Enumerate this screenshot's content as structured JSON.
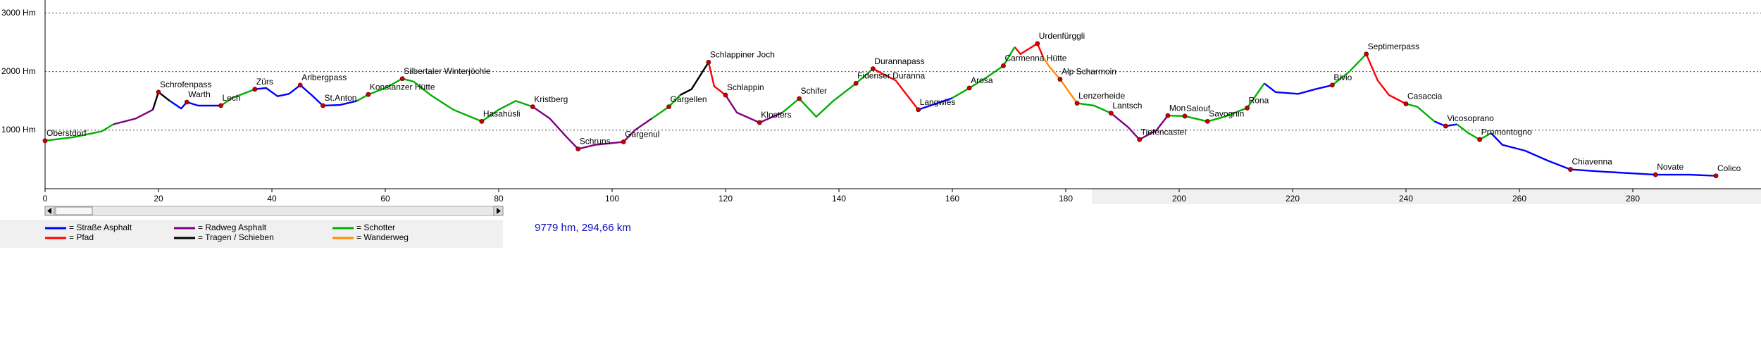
{
  "chart_data": {
    "type": "line",
    "xlim": [
      0,
      300
    ],
    "xticks": [
      0,
      20,
      40,
      60,
      80,
      100,
      120,
      140,
      160,
      180,
      200,
      220,
      240,
      260,
      280
    ],
    "ylim": [
      0,
      3200
    ],
    "yticks": [
      {
        "value": 1000,
        "label": "1000 Hm"
      },
      {
        "value": 2000,
        "label": "2000 Hm"
      },
      {
        "value": 3000,
        "label": "3000 Hm"
      }
    ],
    "grid": true,
    "summary": "9779 hm, 294,66 km",
    "x": [
      0,
      5,
      10,
      12,
      16,
      19,
      20,
      22,
      24,
      25,
      27,
      31,
      33,
      37,
      39,
      41,
      43,
      45,
      47,
      49,
      52,
      55,
      57,
      60,
      63,
      65,
      68,
      72,
      77,
      80,
      83,
      86,
      89,
      92,
      94,
      97,
      102,
      104,
      107,
      110,
      112,
      114,
      117,
      118,
      120,
      122,
      126,
      130,
      133,
      136,
      139,
      143,
      146,
      148,
      150,
      154,
      157,
      160,
      163,
      166,
      169,
      171,
      172,
      175,
      176,
      177,
      179,
      182,
      185,
      188,
      191,
      193,
      196,
      198,
      201,
      205,
      208,
      212,
      215,
      217,
      221,
      224,
      227,
      230,
      233,
      235,
      237,
      240,
      242,
      245,
      247,
      249,
      251,
      253,
      255,
      257,
      261,
      265,
      269,
      275,
      284,
      290,
      294.66
    ],
    "series": [
      {
        "name": "= Straße Asphalt",
        "color": "#0000ff",
        "values": [
          null,
          null,
          null,
          null,
          null,
          null,
          null,
          1500,
          1370,
          1480,
          1420,
          1420,
          null,
          1700,
          1720,
          1580,
          1620,
          1770,
          1600,
          1420,
          1430,
          1500,
          null,
          null,
          null,
          null,
          null,
          null,
          null,
          null,
          null,
          null,
          null,
          null,
          null,
          null,
          null,
          null,
          null,
          null,
          null,
          null,
          null,
          null,
          null,
          null,
          null,
          null,
          null,
          null,
          null,
          null,
          null,
          null,
          null,
          1350,
          1450,
          1550,
          null,
          null,
          null,
          null,
          null,
          null,
          null,
          null,
          null,
          null,
          null,
          null,
          null,
          null,
          null,
          null,
          null,
          null,
          null,
          null,
          1800,
          1650,
          1620,
          1700,
          1770,
          null,
          null,
          null,
          null,
          null,
          null,
          1150,
          1070,
          1100,
          null,
          null,
          950,
          750,
          650,
          480,
          330,
          290,
          240,
          240,
          220
        ]
      },
      {
        "name": "= Pfad",
        "color": "#ff0000",
        "values": [
          null,
          null,
          null,
          null,
          null,
          null,
          null,
          null,
          null,
          null,
          null,
          null,
          null,
          null,
          null,
          null,
          null,
          null,
          null,
          null,
          null,
          null,
          null,
          null,
          null,
          null,
          null,
          null,
          null,
          null,
          null,
          null,
          null,
          null,
          null,
          null,
          null,
          null,
          null,
          null,
          null,
          null,
          2160,
          1750,
          1600,
          null,
          null,
          null,
          null,
          null,
          null,
          null,
          2050,
          1950,
          1850,
          1350,
          null,
          null,
          null,
          null,
          null,
          2420,
          2300,
          2480,
          2250,
          null,
          null,
          null,
          null,
          null,
          null,
          null,
          null,
          null,
          null,
          null,
          null,
          null,
          null,
          null,
          null,
          null,
          null,
          null,
          2300,
          1850,
          1600,
          1450,
          null,
          null,
          null,
          null,
          null,
          null,
          null,
          null,
          null,
          null,
          null,
          null,
          null,
          null,
          null
        ]
      },
      {
        "name": "= Radweg Asphalt",
        "color": "#800080",
        "values": [
          null,
          null,
          null,
          1100,
          1200,
          1350,
          null,
          null,
          null,
          null,
          null,
          null,
          null,
          null,
          null,
          null,
          null,
          null,
          null,
          null,
          null,
          null,
          null,
          null,
          null,
          null,
          null,
          null,
          null,
          null,
          null,
          1400,
          1200,
          880,
          680,
          750,
          800,
          1000,
          1200,
          null,
          null,
          null,
          null,
          null,
          1600,
          1300,
          1130,
          1300,
          null,
          null,
          null,
          null,
          null,
          null,
          null,
          null,
          null,
          null,
          null,
          null,
          null,
          null,
          null,
          null,
          null,
          null,
          null,
          null,
          null,
          1290,
          1050,
          840,
          1000,
          1250,
          null,
          null,
          null,
          null,
          null,
          null,
          null,
          null,
          null,
          null,
          null,
          null,
          null,
          null,
          null,
          null,
          null,
          null,
          null,
          null,
          null,
          null,
          null,
          null,
          null,
          null,
          null,
          null,
          null
        ]
      },
      {
        "name": "= Tragen / Schieben",
        "color": "#000000",
        "values": [
          null,
          null,
          null,
          null,
          null,
          1350,
          1650,
          1500,
          null,
          null,
          null,
          null,
          null,
          null,
          null,
          null,
          null,
          null,
          null,
          null,
          null,
          null,
          null,
          null,
          null,
          null,
          null,
          null,
          null,
          null,
          null,
          null,
          null,
          null,
          null,
          null,
          null,
          null,
          null,
          null,
          1600,
          1700,
          2160,
          null,
          null,
          null,
          null,
          null,
          null,
          null,
          null,
          null,
          null,
          null,
          null,
          null,
          null,
          null,
          null,
          null,
          null,
          null,
          null,
          null,
          null,
          null,
          null,
          null,
          null,
          null,
          null,
          null,
          null,
          null,
          null,
          null,
          null,
          null,
          null,
          null,
          null,
          null,
          null,
          null,
          null,
          null,
          null,
          null,
          null,
          null,
          null,
          null,
          null,
          null,
          null,
          null,
          null,
          null,
          null,
          null,
          null,
          null,
          null
        ]
      },
      {
        "name": "= Schotter",
        "color": "#00b000",
        "values": [
          820,
          880,
          980,
          1100,
          null,
          null,
          null,
          null,
          null,
          null,
          null,
          1420,
          1550,
          1700,
          null,
          null,
          null,
          null,
          null,
          null,
          null,
          1500,
          1610,
          1720,
          1880,
          1830,
          1600,
          1350,
          1150,
          1350,
          1500,
          1400,
          null,
          null,
          null,
          null,
          null,
          null,
          1200,
          1400,
          1600,
          null,
          null,
          null,
          null,
          null,
          null,
          1300,
          1540,
          1230,
          1500,
          1800,
          2050,
          null,
          null,
          null,
          null,
          1550,
          1720,
          1900,
          2100,
          2420,
          null,
          null,
          null,
          null,
          null,
          1460,
          1420,
          1290,
          null,
          null,
          null,
          1250,
          1240,
          1150,
          1230,
          1380,
          1800,
          null,
          null,
          null,
          1770,
          2000,
          2300,
          null,
          null,
          1450,
          1400,
          1150,
          null,
          1100,
          950,
          840,
          950,
          null,
          null,
          null,
          null,
          null,
          null,
          null,
          null
        ]
      },
      {
        "name": "= Wanderweg",
        "color": "#ff8c00",
        "values": [
          null,
          null,
          null,
          null,
          null,
          null,
          null,
          null,
          null,
          null,
          null,
          null,
          null,
          null,
          null,
          null,
          null,
          null,
          null,
          null,
          null,
          null,
          null,
          null,
          null,
          null,
          null,
          null,
          null,
          null,
          null,
          null,
          null,
          null,
          null,
          null,
          null,
          null,
          null,
          null,
          null,
          null,
          null,
          null,
          null,
          null,
          null,
          null,
          null,
          null,
          null,
          null,
          null,
          null,
          null,
          null,
          null,
          null,
          null,
          null,
          null,
          null,
          null,
          null,
          2250,
          2100,
          1870,
          1460,
          null,
          null,
          null,
          null,
          null,
          null,
          null,
          null,
          null,
          null,
          null,
          null,
          null,
          null,
          null,
          null,
          null,
          null,
          null,
          null,
          null,
          null,
          null,
          null,
          null,
          null,
          null,
          null,
          null,
          null,
          null,
          null,
          null,
          null,
          null
        ]
      }
    ],
    "waypoints": [
      {
        "name": "Oberstdorf",
        "x": 0,
        "elevation": 820
      },
      {
        "name": "Schrofenpass",
        "x": 20,
        "elevation": 1650
      },
      {
        "name": "Warth",
        "x": 25,
        "elevation": 1480
      },
      {
        "name": "Lech",
        "x": 31,
        "elevation": 1420
      },
      {
        "name": "Zürs",
        "x": 37,
        "elevation": 1700
      },
      {
        "name": "Arlbergpass",
        "x": 45,
        "elevation": 1770
      },
      {
        "name": "St.Anton",
        "x": 49,
        "elevation": 1420
      },
      {
        "name": "Konstanzer Hütte",
        "x": 57,
        "elevation": 1610
      },
      {
        "name": "Silbertaler Winterjöchle",
        "x": 63,
        "elevation": 1880
      },
      {
        "name": "Hasahüsli",
        "x": 77,
        "elevation": 1150
      },
      {
        "name": "Kristberg",
        "x": 86,
        "elevation": 1400
      },
      {
        "name": "Schruns",
        "x": 94,
        "elevation": 680
      },
      {
        "name": "Gargenul",
        "x": 102,
        "elevation": 800
      },
      {
        "name": "Gargellen",
        "x": 110,
        "elevation": 1400
      },
      {
        "name": "Schlappiner Joch",
        "x": 117,
        "elevation": 2160
      },
      {
        "name": "Schlappin",
        "x": 120,
        "elevation": 1600
      },
      {
        "name": "Klosters",
        "x": 126,
        "elevation": 1130
      },
      {
        "name": "Schifer",
        "x": 133,
        "elevation": 1540
      },
      {
        "name": "Fideriser Duranna",
        "x": 143,
        "elevation": 1800
      },
      {
        "name": "Durannapass",
        "x": 146,
        "elevation": 2050
      },
      {
        "name": "Langwies",
        "x": 154,
        "elevation": 1350
      },
      {
        "name": "Arosa",
        "x": 163,
        "elevation": 1720
      },
      {
        "name": "Carmenna Hütte",
        "x": 169,
        "elevation": 2100
      },
      {
        "name": "Urdenfürggli",
        "x": 175,
        "elevation": 2480
      },
      {
        "name": "Alp Scharmoin",
        "x": 179,
        "elevation": 1870
      },
      {
        "name": "Lenzerheide",
        "x": 182,
        "elevation": 1460
      },
      {
        "name": "Lantsch",
        "x": 188,
        "elevation": 1290
      },
      {
        "name": "Tiefencastel",
        "x": 193,
        "elevation": 840
      },
      {
        "name": "Mon",
        "x": 198,
        "elevation": 1250
      },
      {
        "name": "Salouf",
        "x": 201,
        "elevation": 1240
      },
      {
        "name": "Savognin",
        "x": 205,
        "elevation": 1150
      },
      {
        "name": "Rona",
        "x": 212,
        "elevation": 1380
      },
      {
        "name": "Bivio",
        "x": 227,
        "elevation": 1770
      },
      {
        "name": "Septimerpass",
        "x": 233,
        "elevation": 2300
      },
      {
        "name": "Casaccia",
        "x": 240,
        "elevation": 1450
      },
      {
        "name": "Vicosoprano",
        "x": 247,
        "elevation": 1070
      },
      {
        "name": "Promontogno",
        "x": 253,
        "elevation": 840
      },
      {
        "name": "Chiavenna",
        "x": 269,
        "elevation": 330
      },
      {
        "name": "Novate",
        "x": 284,
        "elevation": 240
      },
      {
        "name": "Colico",
        "x": 294.66,
        "elevation": 220
      }
    ]
  }
}
